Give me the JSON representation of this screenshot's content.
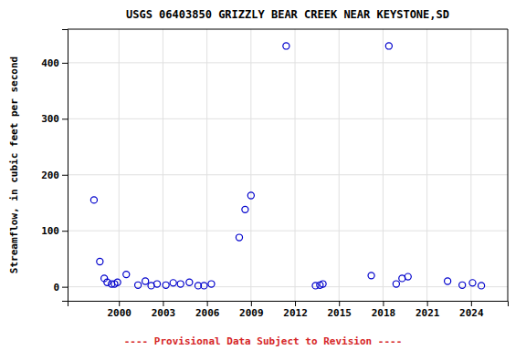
{
  "chart_data": {
    "type": "scatter",
    "title": "USGS 06403850 GRIZZLY BEAR CREEK NEAR KEYSTONE,SD",
    "ylabel": "Streamflow, in cubic feet per second",
    "annotation": "---- Provisional Data Subject to Revision ----",
    "x": [
      1998.3,
      1998.7,
      1999.0,
      1999.2,
      1999.5,
      1999.7,
      1999.9,
      2000.5,
      2001.3,
      2001.8,
      2002.2,
      2002.6,
      2003.2,
      2003.7,
      2004.2,
      2004.8,
      2005.4,
      2005.8,
      2006.3,
      2008.2,
      2008.6,
      2009.0,
      2011.4,
      2013.4,
      2013.7,
      2013.9,
      2017.2,
      2018.4,
      2018.9,
      2019.3,
      2019.7,
      2022.4,
      2023.4,
      2024.1,
      2024.7
    ],
    "values": [
      155,
      45,
      15,
      8,
      5,
      5,
      8,
      22,
      3,
      10,
      2,
      5,
      3,
      7,
      5,
      8,
      2,
      2,
      5,
      88,
      138,
      163,
      430,
      2,
      3,
      5,
      20,
      430,
      5,
      15,
      18,
      10,
      3,
      7,
      2
    ],
    "color": "#0000cc",
    "marker": "circle",
    "xlim": [
      1996.5,
      2026.5
    ],
    "ylim": [
      -25,
      460
    ],
    "xticks": [
      2000,
      2003,
      2006,
      2009,
      2012,
      2015,
      2018,
      2021,
      2024
    ],
    "yticks": [
      0,
      100,
      200,
      300,
      400
    ],
    "grid": true
  }
}
